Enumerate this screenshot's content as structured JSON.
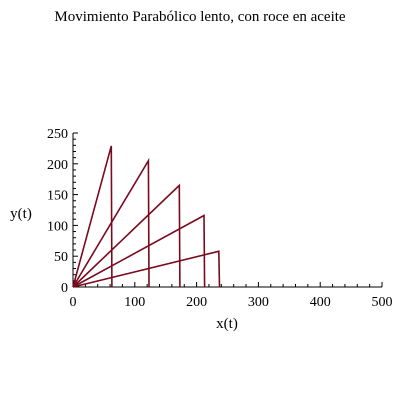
{
  "chart_data": {
    "type": "line",
    "title": "Movimiento Parabólico lento, con roce en aceite",
    "xlabel": "x(t)",
    "ylabel": "y(t)",
    "xlim": [
      0,
      500
    ],
    "ylim": [
      0,
      250
    ],
    "x_ticks": [
      0,
      100,
      200,
      300,
      400,
      500
    ],
    "y_ticks": [
      0,
      50,
      100,
      150,
      200,
      250
    ],
    "grid": false,
    "line_color": "#7a0a1e",
    "series": [
      {
        "points": [
          [
            0,
            0
          ],
          [
            62,
            229
          ],
          [
            63,
            0
          ]
        ]
      },
      {
        "points": [
          [
            0,
            0
          ],
          [
            122,
            205
          ],
          [
            123,
            0
          ]
        ]
      },
      {
        "points": [
          [
            0,
            0
          ],
          [
            172,
            165
          ],
          [
            173,
            0
          ]
        ]
      },
      {
        "points": [
          [
            0,
            0
          ],
          [
            212,
            116
          ],
          [
            213,
            0
          ]
        ]
      },
      {
        "points": [
          [
            0,
            0
          ],
          [
            236,
            58
          ],
          [
            237,
            0
          ]
        ]
      }
    ]
  }
}
